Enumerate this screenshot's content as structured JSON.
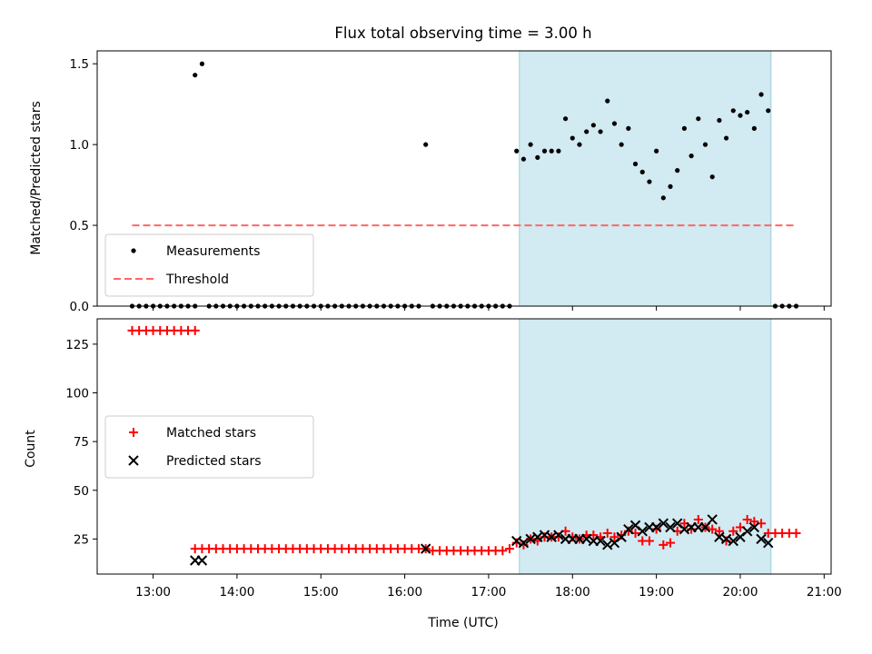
{
  "chart_data": [
    {
      "type": "scatter",
      "title": "Flux total observing time = 3.00 h",
      "xlabel": "",
      "ylabel": "Matched/Predicted stars",
      "xlim": [
        "12:20",
        "21:05"
      ],
      "ylim": [
        0,
        1.58
      ],
      "yticks": [
        "0.0",
        "0.5",
        "1.0",
        "1.5"
      ],
      "grid": false,
      "shaded_span": {
        "from": "17:22",
        "to": "20:22",
        "color": "#add8e6"
      },
      "legend": {
        "placement": "lower-left",
        "entries": [
          "Measurements",
          "Threshold"
        ]
      },
      "series": [
        {
          "name": "Measurements",
          "color": "#000000",
          "marker": "dot",
          "points": [
            [
              "12:45",
              0
            ],
            [
              "12:50",
              0
            ],
            [
              "12:55",
              0
            ],
            [
              "13:00",
              0
            ],
            [
              "13:05",
              0
            ],
            [
              "13:10",
              0
            ],
            [
              "13:15",
              0
            ],
            [
              "13:20",
              0
            ],
            [
              "13:25",
              0
            ],
            [
              "13:30",
              0
            ],
            [
              "13:30",
              1.43
            ],
            [
              "13:35",
              1.5
            ],
            [
              "13:40",
              0
            ],
            [
              "13:45",
              0
            ],
            [
              "13:50",
              0
            ],
            [
              "13:55",
              0
            ],
            [
              "14:00",
              0
            ],
            [
              "14:05",
              0
            ],
            [
              "14:10",
              0
            ],
            [
              "14:15",
              0
            ],
            [
              "14:20",
              0
            ],
            [
              "14:25",
              0
            ],
            [
              "14:30",
              0
            ],
            [
              "14:35",
              0
            ],
            [
              "14:40",
              0
            ],
            [
              "14:45",
              0
            ],
            [
              "14:50",
              0
            ],
            [
              "14:55",
              0
            ],
            [
              "15:00",
              0
            ],
            [
              "15:05",
              0
            ],
            [
              "15:10",
              0
            ],
            [
              "15:15",
              0
            ],
            [
              "15:20",
              0
            ],
            [
              "15:25",
              0
            ],
            [
              "15:30",
              0
            ],
            [
              "15:35",
              0
            ],
            [
              "15:40",
              0
            ],
            [
              "15:45",
              0
            ],
            [
              "15:50",
              0
            ],
            [
              "15:55",
              0
            ],
            [
              "16:00",
              0
            ],
            [
              "16:05",
              0
            ],
            [
              "16:10",
              0
            ],
            [
              "16:15",
              1.0
            ],
            [
              "16:20",
              0
            ],
            [
              "16:25",
              0
            ],
            [
              "16:30",
              0
            ],
            [
              "16:35",
              0
            ],
            [
              "16:40",
              0
            ],
            [
              "16:45",
              0
            ],
            [
              "16:50",
              0
            ],
            [
              "16:55",
              0
            ],
            [
              "17:00",
              0
            ],
            [
              "17:05",
              0
            ],
            [
              "17:10",
              0
            ],
            [
              "17:15",
              0
            ],
            [
              "17:20",
              0.96
            ],
            [
              "17:25",
              0.91
            ],
            [
              "17:30",
              1.0
            ],
            [
              "17:35",
              0.92
            ],
            [
              "17:40",
              0.96
            ],
            [
              "17:45",
              0.96
            ],
            [
              "17:50",
              0.96
            ],
            [
              "17:55",
              1.16
            ],
            [
              "18:00",
              1.04
            ],
            [
              "18:05",
              1.0
            ],
            [
              "18:10",
              1.08
            ],
            [
              "18:15",
              1.12
            ],
            [
              "18:20",
              1.08
            ],
            [
              "18:25",
              1.27
            ],
            [
              "18:30",
              1.13
            ],
            [
              "18:35",
              1.0
            ],
            [
              "18:40",
              1.1
            ],
            [
              "18:45",
              0.88
            ],
            [
              "18:50",
              0.83
            ],
            [
              "18:55",
              0.77
            ],
            [
              "19:00",
              0.96
            ],
            [
              "19:05",
              0.67
            ],
            [
              "19:10",
              0.74
            ],
            [
              "19:15",
              0.84
            ],
            [
              "19:20",
              1.1
            ],
            [
              "19:25",
              0.93
            ],
            [
              "19:30",
              1.16
            ],
            [
              "19:35",
              1.0
            ],
            [
              "19:40",
              0.8
            ],
            [
              "19:45",
              1.15
            ],
            [
              "19:50",
              1.04
            ],
            [
              "19:55",
              1.21
            ],
            [
              "20:00",
              1.18
            ],
            [
              "20:05",
              1.2
            ],
            [
              "20:10",
              1.1
            ],
            [
              "20:15",
              1.31
            ],
            [
              "20:20",
              1.21
            ],
            [
              "20:25",
              0
            ],
            [
              "20:30",
              0
            ],
            [
              "20:35",
              0
            ],
            [
              "20:40",
              0
            ]
          ]
        },
        {
          "name": "Threshold",
          "color": "#ff6666",
          "line": "dashed",
          "x": [
            "12:45",
            "20:40"
          ],
          "y": [
            0.5,
            0.5
          ]
        }
      ]
    },
    {
      "type": "scatter",
      "title": "",
      "xlabel": "Time (UTC)",
      "ylabel": "Count",
      "xlim": [
        "12:20",
        "21:05"
      ],
      "ylim": [
        7,
        138
      ],
      "xticks": [
        "13:00",
        "14:00",
        "15:00",
        "16:00",
        "17:00",
        "18:00",
        "19:00",
        "20:00",
        "21:00"
      ],
      "yticks": [
        "25",
        "50",
        "75",
        "100",
        "125"
      ],
      "grid": false,
      "shaded_span": {
        "from": "17:22",
        "to": "20:22",
        "color": "#add8e6"
      },
      "legend": {
        "placement": "center-left",
        "entries": [
          "Matched stars",
          "Predicted stars"
        ]
      },
      "series": [
        {
          "name": "Matched stars",
          "color": "#ff0000",
          "marker": "plus",
          "points": [
            [
              "12:45",
              132
            ],
            [
              "12:50",
              132
            ],
            [
              "12:55",
              132
            ],
            [
              "13:00",
              132
            ],
            [
              "13:05",
              132
            ],
            [
              "13:10",
              132
            ],
            [
              "13:15",
              132
            ],
            [
              "13:20",
              132
            ],
            [
              "13:25",
              132
            ],
            [
              "13:30",
              132
            ],
            [
              "13:30",
              20
            ],
            [
              "13:35",
              20
            ],
            [
              "13:40",
              20
            ],
            [
              "13:45",
              20
            ],
            [
              "13:50",
              20
            ],
            [
              "13:55",
              20
            ],
            [
              "14:00",
              20
            ],
            [
              "14:05",
              20
            ],
            [
              "14:10",
              20
            ],
            [
              "14:15",
              20
            ],
            [
              "14:20",
              20
            ],
            [
              "14:25",
              20
            ],
            [
              "14:30",
              20
            ],
            [
              "14:35",
              20
            ],
            [
              "14:40",
              20
            ],
            [
              "14:45",
              20
            ],
            [
              "14:50",
              20
            ],
            [
              "14:55",
              20
            ],
            [
              "15:00",
              20
            ],
            [
              "15:05",
              20
            ],
            [
              "15:10",
              20
            ],
            [
              "15:15",
              20
            ],
            [
              "15:20",
              20
            ],
            [
              "15:25",
              20
            ],
            [
              "15:30",
              20
            ],
            [
              "15:35",
              20
            ],
            [
              "15:40",
              20
            ],
            [
              "15:45",
              20
            ],
            [
              "15:50",
              20
            ],
            [
              "15:55",
              20
            ],
            [
              "16:00",
              20
            ],
            [
              "16:05",
              20
            ],
            [
              "16:10",
              20
            ],
            [
              "16:15",
              20
            ],
            [
              "16:20",
              19
            ],
            [
              "16:25",
              19
            ],
            [
              "16:30",
              19
            ],
            [
              "16:35",
              19
            ],
            [
              "16:40",
              19
            ],
            [
              "16:45",
              19
            ],
            [
              "16:50",
              19
            ],
            [
              "16:55",
              19
            ],
            [
              "17:00",
              19
            ],
            [
              "17:05",
              19
            ],
            [
              "17:10",
              19
            ],
            [
              "17:15",
              20
            ],
            [
              "17:20",
              23
            ],
            [
              "17:25",
              22
            ],
            [
              "17:30",
              25
            ],
            [
              "17:35",
              24
            ],
            [
              "17:40",
              26
            ],
            [
              "17:45",
              26
            ],
            [
              "17:50",
              26
            ],
            [
              "17:55",
              29
            ],
            [
              "18:00",
              26
            ],
            [
              "18:05",
              25
            ],
            [
              "18:10",
              27
            ],
            [
              "18:15",
              27
            ],
            [
              "18:20",
              26
            ],
            [
              "18:25",
              28
            ],
            [
              "18:30",
              26
            ],
            [
              "18:35",
              27
            ],
            [
              "18:40",
              29
            ],
            [
              "18:45",
              28
            ],
            [
              "18:50",
              24
            ],
            [
              "18:55",
              24
            ],
            [
              "19:00",
              30
            ],
            [
              "19:05",
              22
            ],
            [
              "19:10",
              23
            ],
            [
              "19:15",
              29
            ],
            [
              "19:20",
              33
            ],
            [
              "19:25",
              30
            ],
            [
              "19:30",
              35
            ],
            [
              "19:35",
              31
            ],
            [
              "19:40",
              30
            ],
            [
              "19:45",
              29
            ],
            [
              "19:50",
              24
            ],
            [
              "19:55",
              29
            ],
            [
              "20:00",
              31
            ],
            [
              "20:05",
              35
            ],
            [
              "20:10",
              34
            ],
            [
              "20:15",
              33
            ],
            [
              "20:20",
              28
            ],
            [
              "20:25",
              28
            ],
            [
              "20:30",
              28
            ],
            [
              "20:35",
              28
            ],
            [
              "20:40",
              28
            ]
          ]
        },
        {
          "name": "Predicted stars",
          "color": "#000000",
          "marker": "x",
          "points": [
            [
              "13:30",
              14
            ],
            [
              "13:35",
              14
            ],
            [
              "16:15",
              20
            ],
            [
              "17:20",
              24
            ],
            [
              "17:25",
              23
            ],
            [
              "17:30",
              25
            ],
            [
              "17:35",
              26
            ],
            [
              "17:40",
              27
            ],
            [
              "17:45",
              26
            ],
            [
              "17:50",
              27
            ],
            [
              "17:55",
              25
            ],
            [
              "18:00",
              25
            ],
            [
              "18:05",
              25
            ],
            [
              "18:10",
              25
            ],
            [
              "18:15",
              24
            ],
            [
              "18:20",
              24
            ],
            [
              "18:25",
              22
            ],
            [
              "18:30",
              23
            ],
            [
              "18:35",
              26
            ],
            [
              "18:40",
              30
            ],
            [
              "18:45",
              32
            ],
            [
              "18:50",
              29
            ],
            [
              "18:55",
              31
            ],
            [
              "19:00",
              31
            ],
            [
              "19:05",
              33
            ],
            [
              "19:10",
              31
            ],
            [
              "19:15",
              33
            ],
            [
              "19:20",
              30
            ],
            [
              "19:25",
              31
            ],
            [
              "19:30",
              31
            ],
            [
              "19:35",
              31
            ],
            [
              "19:40",
              35
            ],
            [
              "19:45",
              26
            ],
            [
              "19:50",
              25
            ],
            [
              "19:55",
              24
            ],
            [
              "20:00",
              26
            ],
            [
              "20:05",
              29
            ],
            [
              "20:10",
              31
            ],
            [
              "20:15",
              25
            ],
            [
              "20:20",
              23
            ]
          ]
        }
      ]
    }
  ]
}
